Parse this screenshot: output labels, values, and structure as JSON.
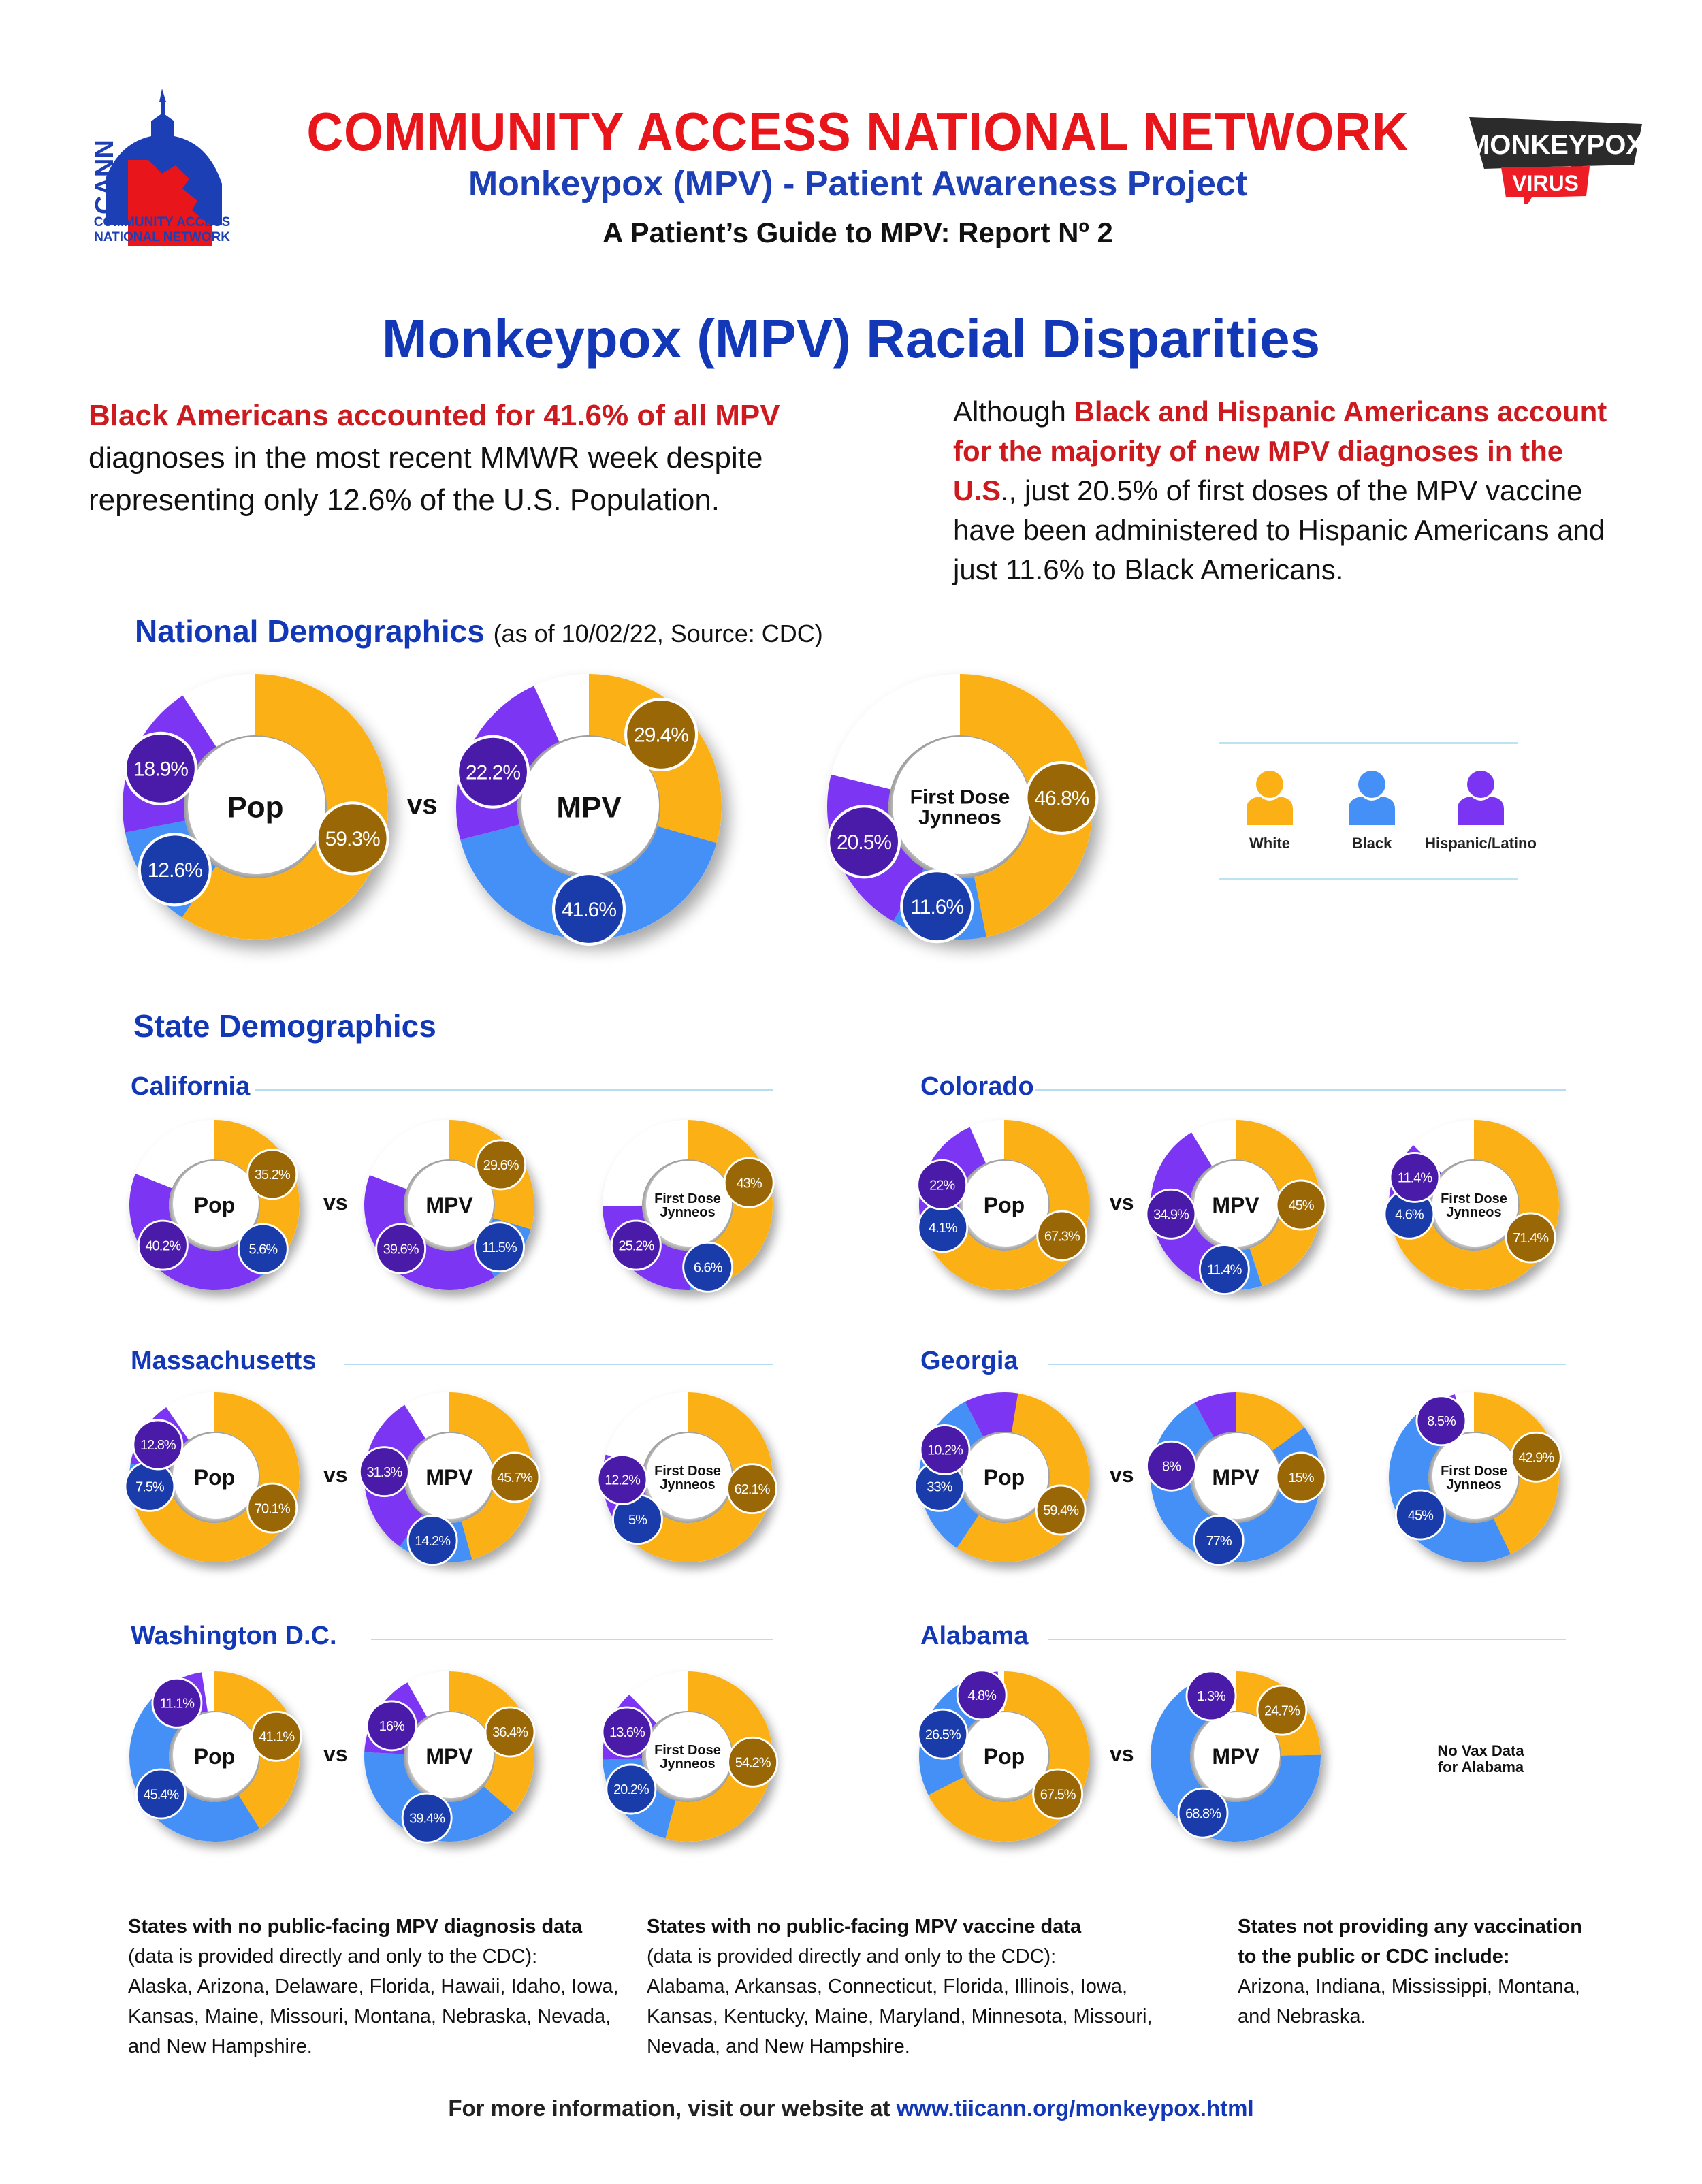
{
  "header": {
    "logo_text": "CANN",
    "logo_caption": [
      "COMMUNITY ACCESS",
      "NATIONAL NETWORK"
    ],
    "org_title": "COMMUNITY ACCESS NATIONAL NETWORK",
    "project_title": "Monkeypox (MPV) - Patient Awareness Project",
    "report_title": "A Patient’s Guide to MPV: Report Nº 2",
    "badge_top": "MONKEYPOX",
    "badge_bottom": "VIRUS"
  },
  "main_title": "Monkeypox (MPV) Racial Disparities",
  "intro": {
    "left_red": "Black Americans accounted for 41.6% of all MPV",
    "left_rest": " diagnoses in the most recent MMWR week despite representing only 12.6% of the U.S. Population.",
    "right_pre": "Although ",
    "right_red": "Black and Hispanic Americans account for the majority of new MPV diagnoses in the U.S",
    "right_rest": "., just 20.5% of first doses of the MPV vaccine have been administered to Hispanic Americans and just 11.6% to Black Americans."
  },
  "colors": {
    "white_group": "#fbb116",
    "black_group": "#4590f7",
    "hispanic_group": "#7b35f2",
    "white_badge": "#9a6706",
    "black_badge": "#1a3cab",
    "hispanic_badge": "#4a1aa8",
    "title_blue": "#1238b8",
    "brand_red": "#e8151b"
  },
  "national": {
    "heading": "National Demographics",
    "subheading": "(as of 10/02/22, Source: CDC)",
    "vs_label": "vs",
    "legend": [
      {
        "label": "White",
        "icon": "person-icon",
        "color": "#fbb116"
      },
      {
        "label": "Black",
        "icon": "person-icon",
        "color": "#4590f7"
      },
      {
        "label": "Hispanic/Latino",
        "icon": "person-icon",
        "color": "#7b35f2"
      }
    ]
  },
  "state_section": {
    "heading": "State Demographics",
    "vs_label": "vs",
    "no_vax_text": [
      "No Vax Data",
      "for Alabama"
    ]
  },
  "chart_data": [
    {
      "type": "pie",
      "title": "National - Pop",
      "center_label": [
        "Pop"
      ],
      "categories": [
        "White",
        "Black",
        "Hispanic/Latino"
      ],
      "values": [
        59.3,
        12.6,
        18.9
      ],
      "labels": [
        "59.3%",
        "12.6%",
        "18.9%"
      ],
      "badge_angles": [
        108,
        232,
        292
      ]
    },
    {
      "type": "pie",
      "title": "National - MPV",
      "center_label": [
        "MPV"
      ],
      "categories": [
        "White",
        "Black",
        "Hispanic/Latino"
      ],
      "values": [
        29.4,
        41.6,
        22.2
      ],
      "labels": [
        "29.4%",
        "41.6%",
        "22.2%"
      ],
      "badge_angles": [
        45,
        180,
        290
      ]
    },
    {
      "type": "pie",
      "title": "National - First Dose Jynneos",
      "center_label": [
        "First Dose",
        "Jynneos"
      ],
      "categories": [
        "White",
        "Black",
        "Hispanic/Latino"
      ],
      "values": [
        46.8,
        11.6,
        20.5
      ],
      "labels": [
        "46.8%",
        "11.6%",
        "20.5%"
      ],
      "badge_angles": [
        85,
        193,
        250
      ]
    },
    {
      "type": "pie",
      "title": "California - Pop",
      "center_label": [
        "Pop"
      ],
      "categories": [
        "White",
        "Black",
        "Hispanic/Latino"
      ],
      "values": [
        35.2,
        5.6,
        40.2
      ],
      "labels": [
        "35.2%",
        "5.6%",
        "40.2%"
      ],
      "badge_angles": [
        62,
        132,
        232
      ]
    },
    {
      "type": "pie",
      "title": "California - MPV",
      "center_label": [
        "MPV"
      ],
      "categories": [
        "White",
        "Black",
        "Hispanic/Latino"
      ],
      "values": [
        29.6,
        11.5,
        39.6
      ],
      "labels": [
        "29.6%",
        "11.5%",
        "39.6%"
      ],
      "badge_angles": [
        52,
        130,
        228
      ]
    },
    {
      "type": "pie",
      "title": "California - First Dose Jynneos",
      "center_label": [
        "First Dose",
        "Jynneos"
      ],
      "categories": [
        "White",
        "Black",
        "Hispanic/Latino"
      ],
      "values": [
        43,
        6.6,
        25.2
      ],
      "labels": [
        "43%",
        "6.6%",
        "25.2%"
      ],
      "badge_angles": [
        70,
        162,
        232
      ]
    },
    {
      "type": "pie",
      "title": "Colorado - Pop",
      "center_label": [
        "Pop"
      ],
      "categories": [
        "White",
        "Black",
        "Hispanic/Latino"
      ],
      "values": [
        67.3,
        4.1,
        22
      ],
      "labels": [
        "67.3%",
        "4.1%",
        "22%"
      ],
      "badge_angles": [
        118,
        250,
        288
      ]
    },
    {
      "type": "pie",
      "title": "Colorado - MPV",
      "center_label": [
        "MPV"
      ],
      "categories": [
        "White",
        "Black",
        "Hispanic/Latino"
      ],
      "values": [
        45,
        11.4,
        34.9
      ],
      "labels": [
        "45%",
        "11.4%",
        "34.9%"
      ],
      "badge_angles": [
        90,
        190,
        262
      ]
    },
    {
      "type": "pie",
      "title": "Colorado - First Dose Jynneos",
      "center_label": [
        "First Dose",
        "Jynneos"
      ],
      "categories": [
        "White",
        "Black",
        "Hispanic/Latino"
      ],
      "values": [
        71.4,
        4.6,
        11.4
      ],
      "labels": [
        "71.4%",
        "4.6%",
        "11.4%"
      ],
      "badge_angles": [
        120,
        262,
        295
      ]
    },
    {
      "type": "pie",
      "title": "Massachusetts - Pop",
      "center_label": [
        "Pop"
      ],
      "categories": [
        "White",
        "Black",
        "Hispanic/Latino"
      ],
      "values": [
        70.1,
        7.5,
        12.8
      ],
      "labels": [
        "70.1%",
        "7.5%",
        "12.8%"
      ],
      "badge_angles": [
        118,
        262,
        300
      ]
    },
    {
      "type": "pie",
      "title": "Massachusetts - MPV",
      "center_label": [
        "MPV"
      ],
      "categories": [
        "White",
        "Black",
        "Hispanic/Latino"
      ],
      "values": [
        45.7,
        14.2,
        31.3
      ],
      "labels": [
        "45.7%",
        "14.2%",
        "31.3%"
      ],
      "badge_angles": [
        90,
        195,
        275
      ]
    },
    {
      "type": "pie",
      "title": "Massachusetts - First Dose Jynneos",
      "center_label": [
        "First Dose",
        "Jynneos"
      ],
      "categories": [
        "White",
        "Black",
        "Hispanic/Latino"
      ],
      "values": [
        62.1,
        5,
        12.2
      ],
      "labels": [
        "62.1%",
        "5%",
        "12.2%"
      ],
      "badge_angles": [
        100,
        230,
        268
      ]
    },
    {
      "type": "pie",
      "title": "Georgia - Pop",
      "center_label": [
        "Pop"
      ],
      "categories": [
        "White",
        "Black",
        "Hispanic/Latino"
      ],
      "values": [
        59.4,
        33,
        10.2
      ],
      "labels": [
        "59.4%",
        "33%",
        "10.2%"
      ],
      "badge_angles": [
        120,
        262,
        295
      ]
    },
    {
      "type": "pie",
      "title": "Georgia - MPV",
      "center_label": [
        "MPV"
      ],
      "categories": [
        "White",
        "Black",
        "Hispanic/Latino"
      ],
      "values": [
        15,
        77,
        8
      ],
      "labels": [
        "15%",
        "77%",
        "8%"
      ],
      "badge_angles": [
        90,
        195,
        280
      ]
    },
    {
      "type": "pie",
      "title": "Georgia - First Dose Jynneos",
      "center_label": [
        "First Dose",
        "Jynneos"
      ],
      "categories": [
        "White",
        "Black",
        "Hispanic/Latino"
      ],
      "values": [
        42.9,
        45,
        8.5
      ],
      "labels": [
        "42.9%",
        "45%",
        "8.5%"
      ],
      "badge_angles": [
        72,
        235,
        330
      ]
    },
    {
      "type": "pie",
      "title": "Washington D.C. - Pop",
      "center_label": [
        "Pop"
      ],
      "categories": [
        "White",
        "Black",
        "Hispanic/Latino"
      ],
      "values": [
        41.1,
        45.4,
        11.1
      ],
      "labels": [
        "41.1%",
        "45.4%",
        "11.1%"
      ],
      "badge_angles": [
        72,
        235,
        325
      ]
    },
    {
      "type": "pie",
      "title": "Washington D.C. - MPV",
      "center_label": [
        "MPV"
      ],
      "categories": [
        "White",
        "Black",
        "Hispanic/Latino"
      ],
      "values": [
        36.4,
        39.4,
        16
      ],
      "labels": [
        "36.4%",
        "39.4%",
        "16%"
      ],
      "badge_angles": [
        68,
        200,
        298
      ]
    },
    {
      "type": "pie",
      "title": "Washington D.C. - First Dose Jynneos",
      "center_label": [
        "First Dose",
        "Jynneos"
      ],
      "categories": [
        "White",
        "Black",
        "Hispanic/Latino"
      ],
      "values": [
        54.2,
        20.2,
        13.6
      ],
      "labels": [
        "54.2%",
        "20.2%",
        "13.6%"
      ],
      "badge_angles": [
        95,
        240,
        292
      ]
    },
    {
      "type": "pie",
      "title": "Alabama - Pop",
      "center_label": [
        "Pop"
      ],
      "categories": [
        "White",
        "Black",
        "Hispanic/Latino"
      ],
      "values": [
        67.5,
        26.5,
        4.8
      ],
      "labels": [
        "67.5%",
        "26.5%",
        "4.8%"
      ],
      "badge_angles": [
        125,
        290,
        340
      ]
    },
    {
      "type": "pie",
      "title": "Alabama - MPV",
      "center_label": [
        "MPV"
      ],
      "categories": [
        "White",
        "Black",
        "Hispanic/Latino"
      ],
      "values": [
        24.7,
        68.8,
        1.3
      ],
      "labels": [
        "24.7%",
        "68.8%",
        "1.3%"
      ],
      "badge_angles": [
        45,
        210,
        338
      ]
    }
  ],
  "states": [
    {
      "name": "California",
      "charts": [
        3,
        4,
        5
      ]
    },
    {
      "name": "Colorado",
      "charts": [
        6,
        7,
        8
      ]
    },
    {
      "name": "Massachusetts",
      "charts": [
        9,
        10,
        11
      ]
    },
    {
      "name": "Georgia",
      "charts": [
        12,
        13,
        14
      ]
    },
    {
      "name": "Washington D.C.",
      "charts": [
        15,
        16,
        17
      ]
    },
    {
      "name": "Alabama",
      "charts": [
        18,
        19
      ]
    }
  ],
  "footer": {
    "col1_title": "States with no public-facing MPV diagnosis data",
    "col1_note": "(data is provided directly and only to the CDC):",
    "col1_list": "Alaska, Arizona, Delaware, Florida, Hawaii, Idaho, Iowa, Kansas, Maine, Missouri, Montana, Nebraska, Nevada, and New Hampshire.",
    "col2_title": "States with no public-facing MPV vaccine data",
    "col2_note": "(data is provided directly and only to the CDC):",
    "col2_list": "Alabama, Arkansas, Connecticut, Florida, Illinois, Iowa, Kansas, Kentucky, Maine, Maryland, Minnesota, Missouri, Nevada, and New Hampshire.",
    "col3_title": "States not providing any vaccination to the public or CDC include:",
    "col3_list": "Arizona, Indiana, Mississippi, Montana, and Nebraska.",
    "more_info_text": "For more information, visit our website at ",
    "more_info_link": "www.tiicann.org/monkeypox.html"
  }
}
